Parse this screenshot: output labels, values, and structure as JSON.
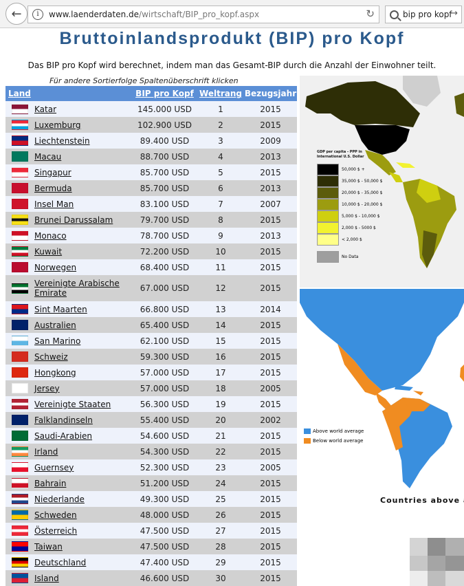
{
  "browser": {
    "url_host": "www.laenderdaten.de",
    "url_path": "/wirtschaft/BIP_pro_kopf.aspx",
    "search_text": "bip pro kopf"
  },
  "page": {
    "title": "Bruttoinlandsprodukt (BIP) pro Kopf",
    "intro": "Das BIP pro Kopf wird berechnet, indem man das Gesamt-BIP durch die Anzahl der Einwohner teilt.",
    "sort_hint": "Für andere Sortierfolge Spaltenüberschrift klicken"
  },
  "table": {
    "headers": {
      "country": "Land",
      "gdp": "BIP pro Kopf",
      "rank": "Weltrang",
      "year": "Bezugsjahr"
    },
    "rows": [
      {
        "country": "Katar",
        "gdp": "145.000 USD",
        "rank": "1",
        "year": "2015",
        "flag": [
          "#8a1538",
          "#ffffff"
        ]
      },
      {
        "country": "Luxemburg",
        "gdp": "102.900 USD",
        "rank": "2",
        "year": "2015",
        "flag": [
          "#ed2939",
          "#ffffff",
          "#00a1de"
        ]
      },
      {
        "country": "Liechtenstein",
        "gdp": "89.400 USD",
        "rank": "3",
        "year": "2009",
        "flag": [
          "#002b7f",
          "#ce1126"
        ]
      },
      {
        "country": "Macau",
        "gdp": "88.700 USD",
        "rank": "4",
        "year": "2013",
        "flag": [
          "#00785e",
          "#00785e"
        ]
      },
      {
        "country": "Singapur",
        "gdp": "85.700 USD",
        "rank": "5",
        "year": "2015",
        "flag": [
          "#ed2939",
          "#ffffff"
        ]
      },
      {
        "country": "Bermuda",
        "gdp": "85.700 USD",
        "rank": "6",
        "year": "2013",
        "flag": [
          "#c8102e",
          "#c8102e"
        ]
      },
      {
        "country": "Insel Man",
        "gdp": "83.100 USD",
        "rank": "7",
        "year": "2007",
        "flag": [
          "#cf142b",
          "#cf142b"
        ]
      },
      {
        "country": "Brunei Darussalam",
        "gdp": "79.700 USD",
        "rank": "8",
        "year": "2015",
        "flag": [
          "#f7e017",
          "#111111",
          "#f7e017"
        ]
      },
      {
        "country": "Monaco",
        "gdp": "78.700 USD",
        "rank": "9",
        "year": "2013",
        "flag": [
          "#ce1126",
          "#ffffff"
        ]
      },
      {
        "country": "Kuwait",
        "gdp": "72.200 USD",
        "rank": "10",
        "year": "2015",
        "flag": [
          "#007a3d",
          "#ffffff",
          "#ce1126"
        ]
      },
      {
        "country": "Norwegen",
        "gdp": "68.400 USD",
        "rank": "11",
        "year": "2015",
        "flag": [
          "#ba0c2f",
          "#ba0c2f"
        ]
      },
      {
        "country": "Vereinigte Arabische Emirate",
        "gdp": "67.000 USD",
        "rank": "12",
        "year": "2015",
        "flag": [
          "#00732f",
          "#ffffff",
          "#000000"
        ]
      },
      {
        "country": "Sint Maarten",
        "gdp": "66.800 USD",
        "rank": "13",
        "year": "2014",
        "flag": [
          "#dc171d",
          "#012a87"
        ]
      },
      {
        "country": "Australien",
        "gdp": "65.400 USD",
        "rank": "14",
        "year": "2015",
        "flag": [
          "#012169",
          "#012169"
        ]
      },
      {
        "country": "San Marino",
        "gdp": "62.100 USD",
        "rank": "15",
        "year": "2015",
        "flag": [
          "#ffffff",
          "#5eb6e4"
        ]
      },
      {
        "country": "Schweiz",
        "gdp": "59.300 USD",
        "rank": "16",
        "year": "2015",
        "flag": [
          "#d52b1e",
          "#d52b1e"
        ]
      },
      {
        "country": "Hongkong",
        "gdp": "57.000 USD",
        "rank": "17",
        "year": "2015",
        "flag": [
          "#de2910",
          "#de2910"
        ]
      },
      {
        "country": "Jersey",
        "gdp": "57.000 USD",
        "rank": "18",
        "year": "2005",
        "flag": [
          "#ffffff",
          "#ffffff"
        ]
      },
      {
        "country": "Vereinigte Staaten",
        "gdp": "56.300 USD",
        "rank": "19",
        "year": "2015",
        "flag": [
          "#b22234",
          "#ffffff",
          "#b22234"
        ]
      },
      {
        "country": "Falklandinseln",
        "gdp": "55.400 USD",
        "rank": "20",
        "year": "2002",
        "flag": [
          "#012169",
          "#012169"
        ]
      },
      {
        "country": "Saudi-Arabien",
        "gdp": "54.600 USD",
        "rank": "21",
        "year": "2015",
        "flag": [
          "#006c35",
          "#006c35"
        ]
      },
      {
        "country": "Irland",
        "gdp": "54.300 USD",
        "rank": "22",
        "year": "2015",
        "flag": [
          "#169b62",
          "#ffffff",
          "#ff883e"
        ]
      },
      {
        "country": "Guernsey",
        "gdp": "52.300 USD",
        "rank": "23",
        "year": "2005",
        "flag": [
          "#ffffff",
          "#e8112d"
        ]
      },
      {
        "country": "Bahrain",
        "gdp": "51.200 USD",
        "rank": "24",
        "year": "2015",
        "flag": [
          "#ffffff",
          "#ce1126"
        ]
      },
      {
        "country": "Niederlande",
        "gdp": "49.300 USD",
        "rank": "25",
        "year": "2015",
        "flag": [
          "#ae1c28",
          "#ffffff",
          "#21468b"
        ]
      },
      {
        "country": "Schweden",
        "gdp": "48.000 USD",
        "rank": "26",
        "year": "2015",
        "flag": [
          "#006aa7",
          "#fecc00"
        ]
      },
      {
        "country": "Österreich",
        "gdp": "47.500 USD",
        "rank": "27",
        "year": "2015",
        "flag": [
          "#ed2939",
          "#ffffff",
          "#ed2939"
        ]
      },
      {
        "country": "Taiwan",
        "gdp": "47.500 USD",
        "rank": "28",
        "year": "2015",
        "flag": [
          "#fe0000",
          "#000095"
        ]
      },
      {
        "country": "Deutschland",
        "gdp": "47.400 USD",
        "rank": "29",
        "year": "2015",
        "flag": [
          "#000000",
          "#dd0000",
          "#ffce00"
        ]
      },
      {
        "country": "Island",
        "gdp": "46.600 USD",
        "rank": "30",
        "year": "2015",
        "flag": [
          "#02529c",
          "#dc1e35"
        ]
      }
    ]
  },
  "map1": {
    "legend_title_1": "GDP per capita - PPP in",
    "legend_title_2": "International U.S. Dollar",
    "legend": [
      {
        "label": "50,000 $ +",
        "color": "#000000"
      },
      {
        "label": "35,000 $ - 50,000 $",
        "color": "#2e2e06"
      },
      {
        "label": "20,000 $ - 35,000 $",
        "color": "#5c5c0c"
      },
      {
        "label": "10,000 $ - 20,000 $",
        "color": "#9c9c10"
      },
      {
        "label": "5,000 $ - 10,000 $",
        "color": "#cfcf10"
      },
      {
        "label": "2,000 $ - 5000 $",
        "color": "#f2f230"
      },
      {
        "label": "< 2,000 $",
        "color": "#ffff88"
      },
      {
        "label": "No Data",
        "color": "#9e9e9e"
      }
    ]
  },
  "map2": {
    "legend": [
      {
        "label": "Above world average",
        "color": "#3a8fde"
      },
      {
        "label": "Below world average",
        "color": "#f08c21"
      }
    ],
    "caption": "Countries above ar"
  }
}
